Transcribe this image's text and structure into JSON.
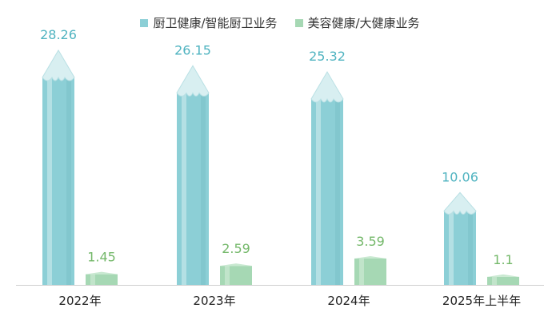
{
  "chart_data": {
    "type": "bar",
    "categories": [
      "2022年",
      "2023年",
      "2024年",
      "2025年上半年"
    ],
    "series": [
      {
        "name": "厨卫健康/智能厨卫业务",
        "values": [
          28.26,
          26.15,
          25.32,
          10.06
        ],
        "color": "#8ccfd6",
        "label_color": "#4fb3c0"
      },
      {
        "name": "美容健康/大健康业务",
        "values": [
          1.45,
          2.59,
          3.59,
          1.1
        ],
        "color": "#a6d8b4",
        "label_color": "#74b86a"
      }
    ],
    "title": "",
    "xlabel": "",
    "ylabel": "",
    "ylim": [
      0,
      30
    ]
  }
}
